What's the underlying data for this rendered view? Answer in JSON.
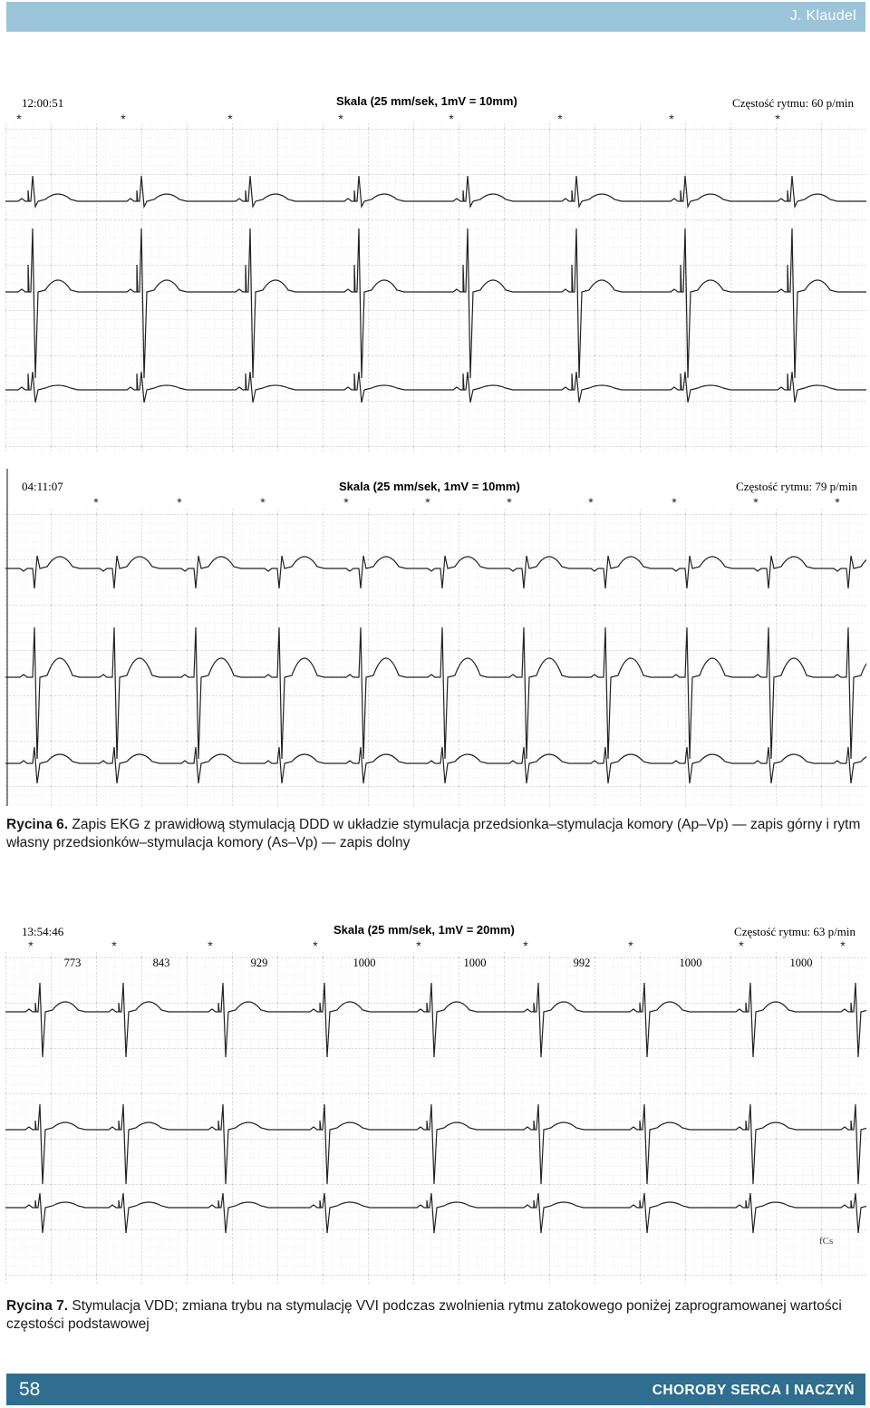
{
  "header": {
    "author": "J. Klaudel"
  },
  "ecg1": {
    "time": "12:00:51",
    "scale": "Skala  (25 mm/sek, 1mV = 10mm)",
    "rate": "Częstość rytmu:  60 p/min"
  },
  "ecg2": {
    "time": "04:11:07",
    "scale": "Skala  (25 mm/sek, 1mV = 10mm)",
    "rate": "Częstość rytmu:  79 p/min"
  },
  "ecg3": {
    "time": "13:54:46",
    "scale": "Skala  (25 mm/sek, 1mV = 20mm)",
    "rate": "Częstość rytmu:  63 p/min",
    "intervals": [
      "773",
      "843",
      "929",
      "1000",
      "1000",
      "992",
      "1000",
      "1000"
    ],
    "annotation": "fCs"
  },
  "caption6": {
    "label": "Rycina 6.",
    "text": " Zapis EKG z prawidłową stymulacją DDD w układzie stymulacja przedsionka–stymulacja komory (Ap–Vp) — zapis górny i rytm własny przedsionków–stymulacja komory (As–Vp) — zapis dolny"
  },
  "caption7": {
    "label": "Rycina 7.",
    "text": " Stymulacja VDD; zmiana trybu na stymulację VVI podczas zwolnienia rytmu zatokowego poniżej zaprogramowanej wartości częstości podstawowej"
  },
  "footer": {
    "page": "58",
    "journal": "CHOROBY SERCA I NACZYŃ"
  },
  "colors": {
    "header_bar": "#9cc4d9",
    "footer_bar": "#2f6e8e",
    "grid": "#c9c9c9"
  }
}
